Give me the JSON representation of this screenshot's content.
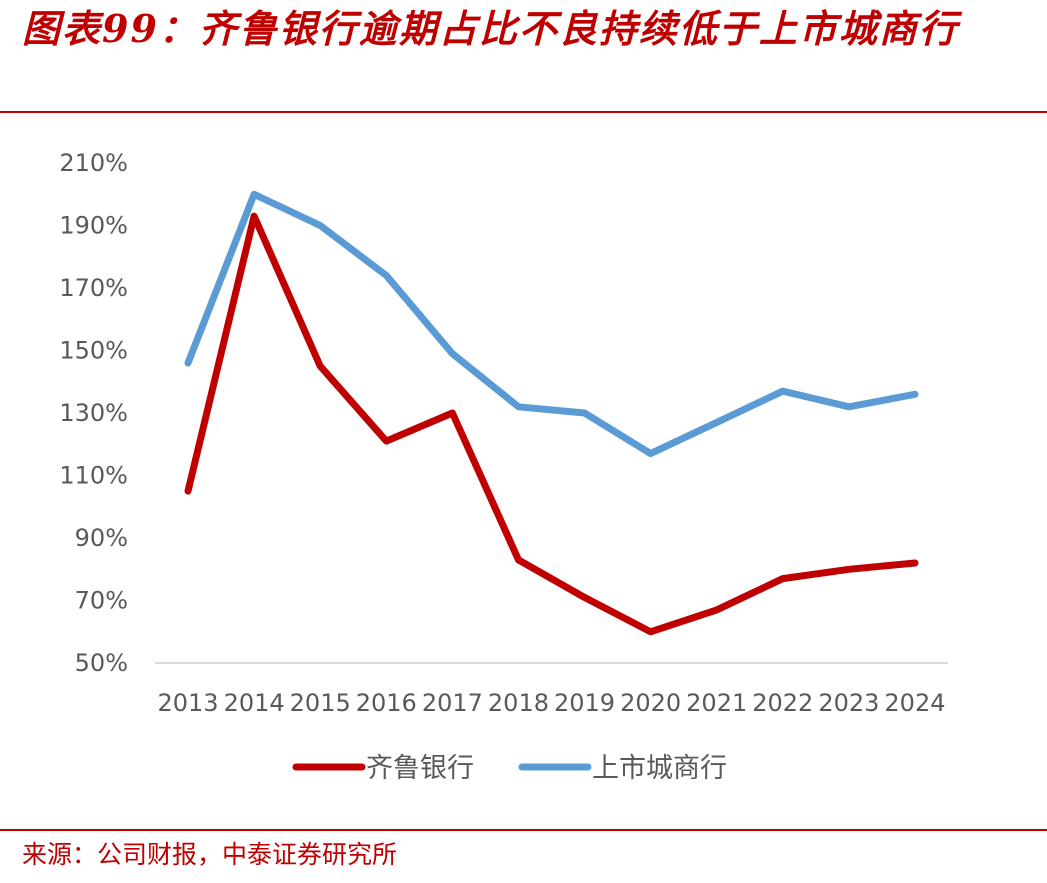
{
  "header": {
    "title": "图表99：齐鲁银行逾期占比不良持续低于上市城商行"
  },
  "footer": {
    "source": "来源：公司财报，中泰证券研究所"
  },
  "chart_data": {
    "type": "line",
    "categories": [
      "2013",
      "2014",
      "2015",
      "2016",
      "2017",
      "2018",
      "2019",
      "2020",
      "2021",
      "2022",
      "2023",
      "2024"
    ],
    "series": [
      {
        "name": "齐鲁银行",
        "color": "#c00000",
        "values": [
          1.05,
          1.93,
          1.45,
          1.21,
          1.3,
          0.83,
          0.71,
          0.6,
          0.67,
          0.77,
          0.8,
          0.82
        ]
      },
      {
        "name": "上市城商行",
        "color": "#5b9bd5",
        "values": [
          1.46,
          2.0,
          1.9,
          1.74,
          1.49,
          1.32,
          1.3,
          1.17,
          1.27,
          1.37,
          1.32,
          1.36
        ]
      }
    ],
    "yticks": [
      "50%",
      "70%",
      "90%",
      "110%",
      "130%",
      "150%",
      "170%",
      "190%",
      "210%"
    ],
    "ylim": [
      0.5,
      2.1
    ],
    "grid": false,
    "legend_position": "bottom"
  }
}
